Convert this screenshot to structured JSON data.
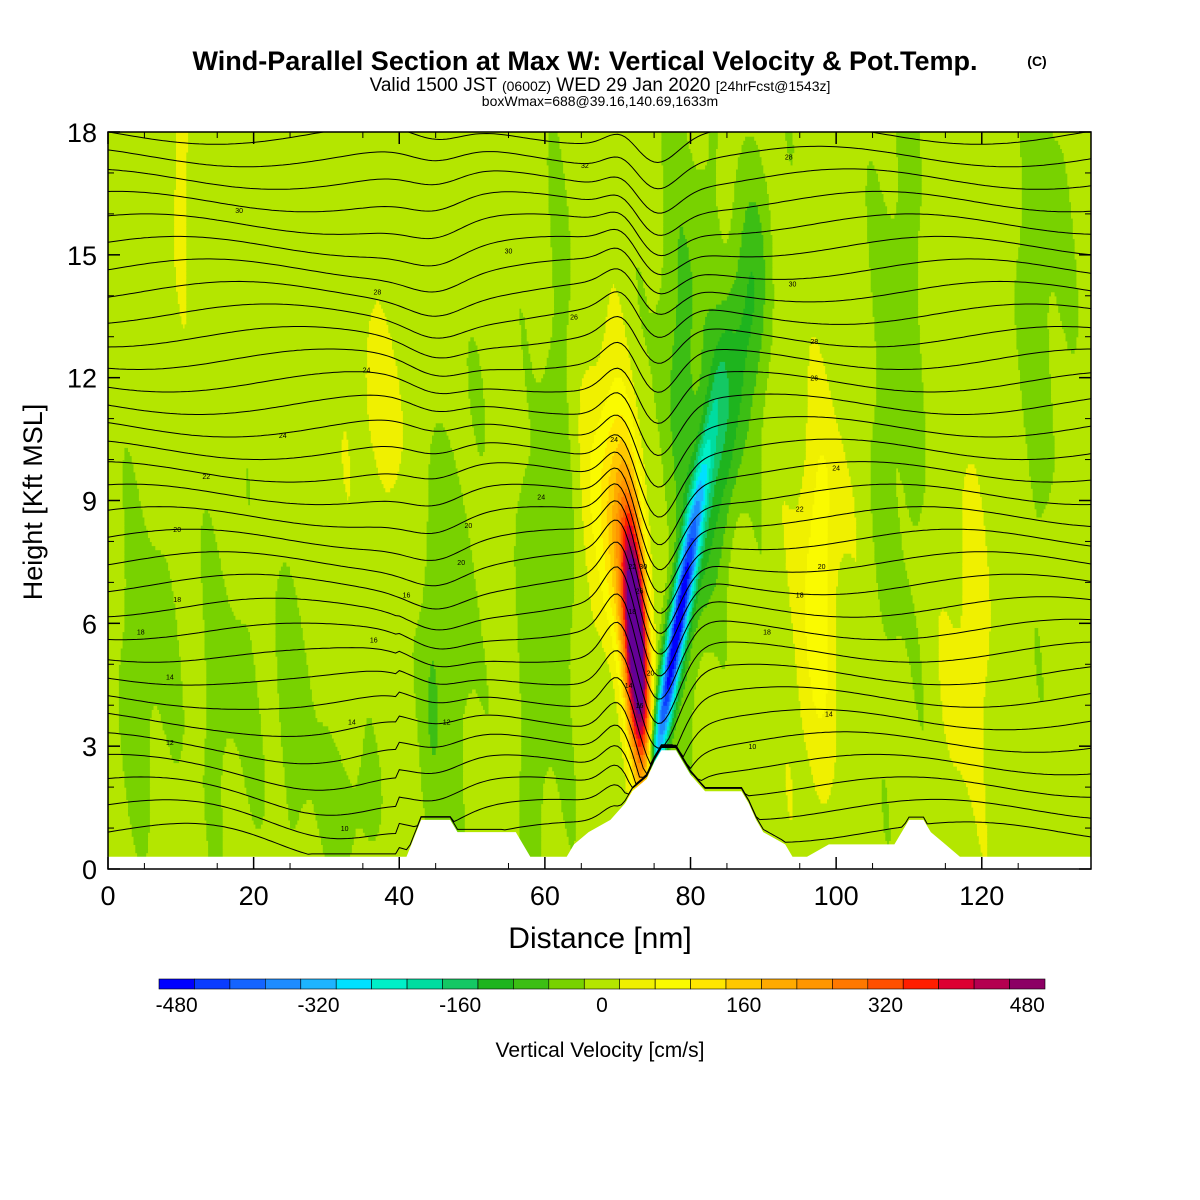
{
  "chart_data": {
    "type": "heatmap",
    "title": "Wind-Parallel Section at Max W: Vertical Velocity & Pot.Temp.",
    "title_mark": "(C)",
    "subtitle_main": "Valid 1500 JST",
    "subtitle_utc": "(0600Z)",
    "subtitle_date": "WED 29 Jan 2020",
    "subtitle_fcst": "[24hrFcst@1543z]",
    "subtitle2": "boxWmax=688@39.16,140.69,1633m",
    "xlabel": "Distance [nm]",
    "ylabel": "Height [Kft MSL]",
    "xlim": [
      0,
      135
    ],
    "ylim": [
      0,
      18
    ],
    "x_ticks": [
      0,
      20,
      40,
      60,
      80,
      100,
      120
    ],
    "y_ticks": [
      0,
      3,
      6,
      9,
      12,
      15,
      18
    ],
    "colorbar": {
      "label": "Vertical Velocity [cm/s]",
      "range": [
        -500,
        500
      ],
      "step": 40,
      "tick_values": [
        -480,
        -320,
        -160,
        0,
        160,
        320,
        480
      ],
      "colors": [
        "#0000ff",
        "#0a3cff",
        "#1464ff",
        "#1e8cff",
        "#1eb4ff",
        "#00e0ff",
        "#00f0c8",
        "#00dca0",
        "#14c864",
        "#1eb41e",
        "#3cbe14",
        "#78d200",
        "#b4e600",
        "#f0f000",
        "#fafa00",
        "#ffe600",
        "#ffc800",
        "#ffaa00",
        "#ff9600",
        "#ff7800",
        "#ff5000",
        "#ff1e00",
        "#dc0032",
        "#b40050",
        "#8c0064",
        "#640096"
      ]
    },
    "features": [
      {
        "label": "strong updraft",
        "x_center": 72.5,
        "max_cm_s": 688,
        "height_kft": [
          2.5,
          8
        ]
      },
      {
        "label": "strong downdraft",
        "x_center": 75.5,
        "min_cm_s": -480,
        "height_kft": [
          2.5,
          10
        ]
      }
    ],
    "terrain": [
      [
        0,
        0.3
      ],
      [
        41,
        0.3
      ],
      [
        43,
        1.2
      ],
      [
        47,
        1.2
      ],
      [
        48,
        0.9
      ],
      [
        56,
        0.9
      ],
      [
        57,
        0.6
      ],
      [
        58,
        0.3
      ],
      [
        63,
        0.3
      ],
      [
        64,
        0.6
      ],
      [
        66,
        0.9
      ],
      [
        69,
        1.2
      ],
      [
        71,
        1.6
      ],
      [
        72,
        1.9
      ],
      [
        74,
        2.2
      ],
      [
        75,
        2.6
      ],
      [
        76,
        2.9
      ],
      [
        78,
        2.9
      ],
      [
        79,
        2.6
      ],
      [
        80,
        2.3
      ],
      [
        81,
        2.1
      ],
      [
        82,
        1.9
      ],
      [
        87,
        1.9
      ],
      [
        88,
        1.6
      ],
      [
        89,
        1.2
      ],
      [
        90,
        0.9
      ],
      [
        93,
        0.6
      ],
      [
        94,
        0.3
      ],
      [
        96,
        0.3
      ],
      [
        99,
        0.6
      ],
      [
        108,
        0.6
      ],
      [
        109,
        0.9
      ],
      [
        110,
        1.2
      ],
      [
        112,
        1.2
      ],
      [
        113,
        0.9
      ],
      [
        115,
        0.6
      ],
      [
        117,
        0.3
      ],
      [
        135,
        0.3
      ]
    ],
    "isentrope_labels": [
      {
        "x": 65.5,
        "z": 17.2,
        "text": "32"
      },
      {
        "x": 93.5,
        "z": 17.4,
        "text": "28"
      },
      {
        "x": 18.0,
        "z": 16.1,
        "text": "30"
      },
      {
        "x": 55.0,
        "z": 15.1,
        "text": "30"
      },
      {
        "x": 37.0,
        "z": 14.1,
        "text": "28"
      },
      {
        "x": 64.0,
        "z": 13.5,
        "text": "26"
      },
      {
        "x": 94.0,
        "z": 14.3,
        "text": "30"
      },
      {
        "x": 97.0,
        "z": 12.9,
        "text": "28"
      },
      {
        "x": 97.0,
        "z": 12.0,
        "text": "26"
      },
      {
        "x": 35.5,
        "z": 12.2,
        "text": "24"
      },
      {
        "x": 24.0,
        "z": 10.6,
        "text": "24"
      },
      {
        "x": 69.5,
        "z": 10.5,
        "text": "24"
      },
      {
        "x": 13.5,
        "z": 9.6,
        "text": "22"
      },
      {
        "x": 59.5,
        "z": 9.1,
        "text": "24"
      },
      {
        "x": 100.0,
        "z": 9.8,
        "text": "24"
      },
      {
        "x": 9.5,
        "z": 8.3,
        "text": "20"
      },
      {
        "x": 49.5,
        "z": 8.4,
        "text": "20"
      },
      {
        "x": 95.0,
        "z": 8.8,
        "text": "22"
      },
      {
        "x": 48.5,
        "z": 7.5,
        "text": "20"
      },
      {
        "x": 98.0,
        "z": 7.4,
        "text": "20"
      },
      {
        "x": 72.0,
        "z": 7.4,
        "text": "22"
      },
      {
        "x": 73.5,
        "z": 7.4,
        "text": "30"
      },
      {
        "x": 9.5,
        "z": 6.6,
        "text": "18"
      },
      {
        "x": 41.0,
        "z": 6.7,
        "text": "16"
      },
      {
        "x": 95.0,
        "z": 6.7,
        "text": "18"
      },
      {
        "x": 72.0,
        "z": 6.3,
        "text": "18"
      },
      {
        "x": 73.0,
        "z": 6.8,
        "text": "26"
      },
      {
        "x": 4.5,
        "z": 5.8,
        "text": "18"
      },
      {
        "x": 36.5,
        "z": 5.6,
        "text": "16"
      },
      {
        "x": 90.5,
        "z": 5.8,
        "text": "18"
      },
      {
        "x": 8.5,
        "z": 4.7,
        "text": "14"
      },
      {
        "x": 74.5,
        "z": 4.8,
        "text": "20"
      },
      {
        "x": 71.5,
        "z": 4.5,
        "text": "14"
      },
      {
        "x": 33.5,
        "z": 3.6,
        "text": "14"
      },
      {
        "x": 46.5,
        "z": 3.6,
        "text": "12"
      },
      {
        "x": 99.0,
        "z": 3.8,
        "text": "14"
      },
      {
        "x": 73.0,
        "z": 4.0,
        "text": "16"
      },
      {
        "x": 8.5,
        "z": 3.1,
        "text": "12"
      },
      {
        "x": 88.5,
        "z": 3.0,
        "text": "10"
      },
      {
        "x": 32.5,
        "z": 1.0,
        "text": "10"
      }
    ]
  }
}
